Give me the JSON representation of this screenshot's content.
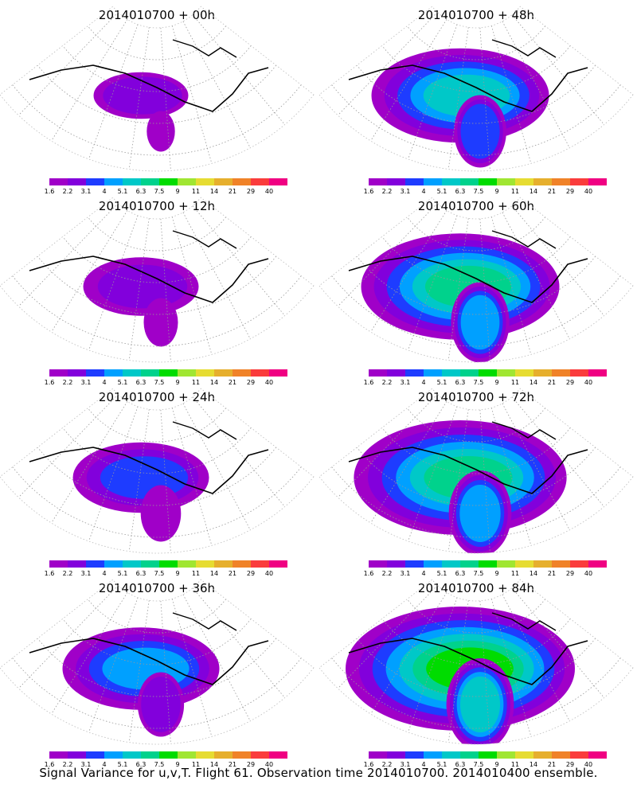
{
  "figure": {
    "caption": "Signal Variance for u,v,T. Flight 61. Observation time 2014010700. 2014010400 ensemble."
  },
  "panels": [
    {
      "title": "2014010700 + 00h",
      "intensity": 0.15
    },
    {
      "title": "2014010700 + 48h",
      "intensity": 0.55
    },
    {
      "title": "2014010700 + 12h",
      "intensity": 0.25
    },
    {
      "title": "2014010700 + 60h",
      "intensity": 0.65
    },
    {
      "title": "2014010700 + 24h",
      "intensity": 0.35
    },
    {
      "title": "2014010700 + 72h",
      "intensity": 0.72
    },
    {
      "title": "2014010700 + 36h",
      "intensity": 0.45
    },
    {
      "title": "2014010700 + 84h",
      "intensity": 0.8
    }
  ],
  "colorbar": {
    "ticks": [
      "1.6",
      "2.2",
      "3.1",
      "4",
      "5.1",
      "6.3",
      "7.5",
      "9",
      "11",
      "14",
      "21",
      "29",
      "40"
    ],
    "colors": [
      "#a000c8",
      "#8200dc",
      "#1e3cff",
      "#00a0ff",
      "#00c8c8",
      "#00d28c",
      "#00dc00",
      "#a0e632",
      "#e6dc32",
      "#e6af2d",
      "#f08228",
      "#fa3c3c",
      "#f00082"
    ]
  }
}
